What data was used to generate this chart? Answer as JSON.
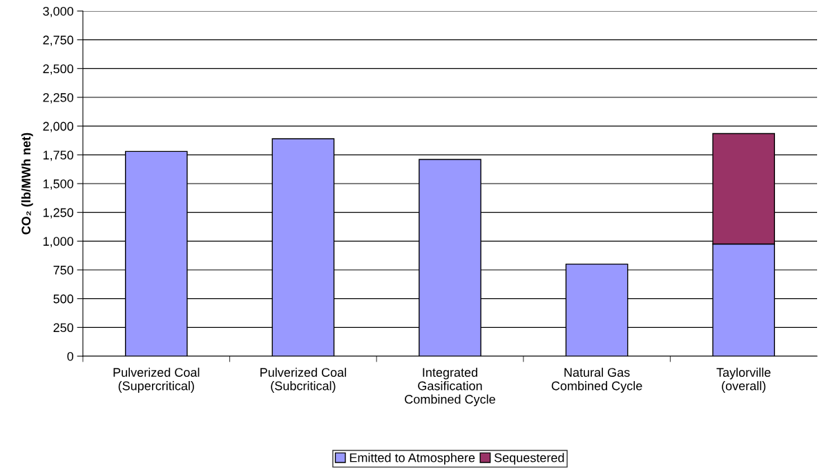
{
  "chart_data": {
    "type": "bar",
    "stacked": true,
    "ylabel": "CO₂ (lb/MWh net)",
    "categories": [
      "Pulverized Coal\n(Supercritical)",
      "Pulverized Coal\n(Subcritical)",
      "Integrated\nGasification\nCombined Cycle",
      "Natural Gas\nCombined Cycle",
      "Taylorville\n(overall)"
    ],
    "series": [
      {
        "name": "Emitted to Atmosphere",
        "color": "#9999ff",
        "values": [
          1780,
          1890,
          1710,
          800,
          975
        ]
      },
      {
        "name": "Sequestered",
        "color": "#993366",
        "values": [
          null,
          null,
          null,
          null,
          960
        ]
      }
    ],
    "ylim": [
      0,
      3000
    ],
    "yticks": [
      {
        "value": 0,
        "label": "0"
      },
      {
        "value": 250,
        "label": "250"
      },
      {
        "value": 500,
        "label": "500"
      },
      {
        "value": 750,
        "label": "750"
      },
      {
        "value": 1000,
        "label": "1,000"
      },
      {
        "value": 1250,
        "label": "1,250"
      },
      {
        "value": 1500,
        "label": "1,500"
      },
      {
        "value": 1750,
        "label": "1,750"
      },
      {
        "value": 2000,
        "label": "2,000"
      },
      {
        "value": 2250,
        "label": "2,250"
      },
      {
        "value": 2500,
        "label": "2,500"
      },
      {
        "value": 2750,
        "label": "2,750"
      },
      {
        "value": 3000,
        "label": "3,000"
      }
    ],
    "grid": "y",
    "legend": "bottom"
  }
}
